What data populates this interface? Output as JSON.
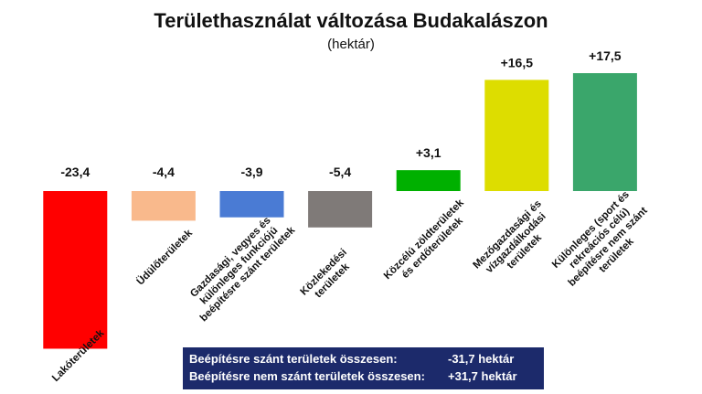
{
  "chart_data": {
    "type": "bar",
    "title": "Területhasználat változása Budakalászon",
    "subtitle": "(hektár)",
    "categories": [
      "Lakóterületek",
      "Üdülőterületek",
      "Gazdasági, vegyes és\nkülönleges funkciójú\nbeépítésre szánt területek",
      "Közlekedési\nterületek",
      "Közcélú zöldterületek\nés erdőterületek",
      "Mezőgazdasági és\nvízgazdálkodási\nterületek",
      "Különleges (sport és\nrekreációs célú)\nbeépítésre nem szánt\nterületek"
    ],
    "values": [
      -23.4,
      -4.4,
      -3.9,
      -5.4,
      3.1,
      16.5,
      17.5
    ],
    "value_labels": [
      "-23,4",
      "-4,4",
      "-3,9",
      "-5,4",
      "+3,1",
      "+16,5",
      "+17,5"
    ],
    "colors": [
      "#ff0000",
      "#f9b98c",
      "#4a7bd4",
      "#7f7a78",
      "#00b000",
      "#dddd00",
      "#3aa66b"
    ]
  },
  "summary": [
    {
      "label": "Beépítésre szánt területek összesen:",
      "value": "-31,7 hektár"
    },
    {
      "label": "Beépítésre nem szánt területek összesen:",
      "value": "+31,7 hektár"
    }
  ]
}
